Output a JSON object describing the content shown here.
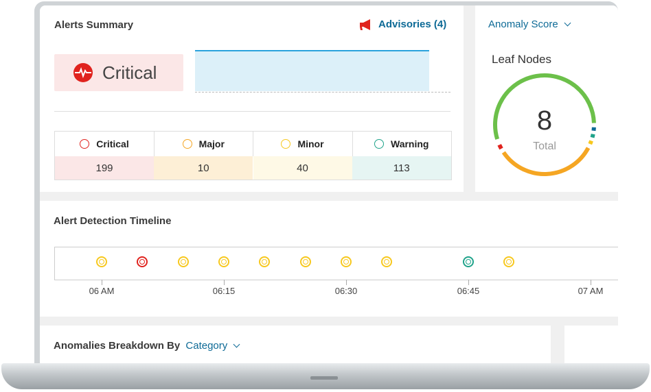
{
  "alerts_summary": {
    "title": "Alerts Summary",
    "advisories_label": "Advisories (4)",
    "current_severity": "Critical",
    "severities": [
      {
        "label": "Critical",
        "count": "199",
        "color": "#e0231e",
        "bg": "#fbe7e7"
      },
      {
        "label": "Major",
        "count": "10",
        "color": "#f5a623",
        "bg": "#fdefd6"
      },
      {
        "label": "Minor",
        "count": "40",
        "color": "#f7c81e",
        "bg": "#fef9e6"
      },
      {
        "label": "Warning",
        "count": "113",
        "color": "#1fa38a",
        "bg": "#e6f5f3"
      }
    ]
  },
  "anomaly": {
    "dropdown_label": "Anomaly Score",
    "heading": "Leaf Nodes",
    "total_value": "8",
    "total_label": "Total"
  },
  "timeline": {
    "title": "Alert Detection Timeline",
    "ticks": [
      "06 AM",
      "06:15",
      "06:30",
      "06:45",
      "07 AM"
    ],
    "events": [
      {
        "time": "06:00",
        "severity": "minor"
      },
      {
        "time": "06:05",
        "severity": "critical"
      },
      {
        "time": "06:10",
        "severity": "minor"
      },
      {
        "time": "06:15",
        "severity": "minor"
      },
      {
        "time": "06:20",
        "severity": "minor"
      },
      {
        "time": "06:25",
        "severity": "minor"
      },
      {
        "time": "06:30",
        "severity": "minor"
      },
      {
        "time": "06:35",
        "severity": "minor"
      },
      {
        "time": "06:45",
        "severity": "warning"
      },
      {
        "time": "06:50",
        "severity": "minor"
      }
    ]
  },
  "breakdown": {
    "title": "Anomalies Breakdown By",
    "dropdown_label": "Category"
  },
  "colors": {
    "accent": "#0d6a96",
    "critical": "#e0231e",
    "major": "#f5a623",
    "minor": "#f7c81e",
    "warning": "#1fa38a",
    "healthy": "#6cc04a"
  }
}
